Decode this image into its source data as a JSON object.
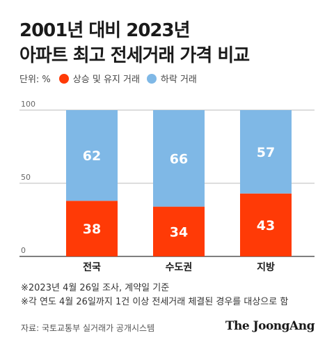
{
  "title_lines": [
    "2001년 대비 2023년",
    "아파트 최고 전세거래 가격 비교"
  ],
  "legend": {
    "unit": "단위: %",
    "items": [
      {
        "label": "상승 및 유지 거래",
        "color": "#ff3a06"
      },
      {
        "label": "하락 거래",
        "color": "#7fb8e6"
      }
    ]
  },
  "chart_data": {
    "type": "bar",
    "stacked": true,
    "categories": [
      "전국",
      "수도권",
      "지방"
    ],
    "series": [
      {
        "name": "상승 및 유지 거래",
        "values": [
          38,
          34,
          43
        ],
        "color": "#ff3a06"
      },
      {
        "name": "하락 거래",
        "values": [
          62,
          66,
          57
        ],
        "color": "#7fb8e6"
      }
    ],
    "ylim": [
      0,
      100
    ],
    "yticks": [
      0,
      50,
      100
    ],
    "grid": true
  },
  "notes": [
    "※2023년 4월 26일 조사, 계약일 기준",
    "※각 연도 4월 26일까지 1건 이상 전세거래 체결된 경우를 대상으로 함"
  ],
  "source": "자료: 국토교통부 실거래가 공개시스템",
  "brand": "The JoongAng"
}
